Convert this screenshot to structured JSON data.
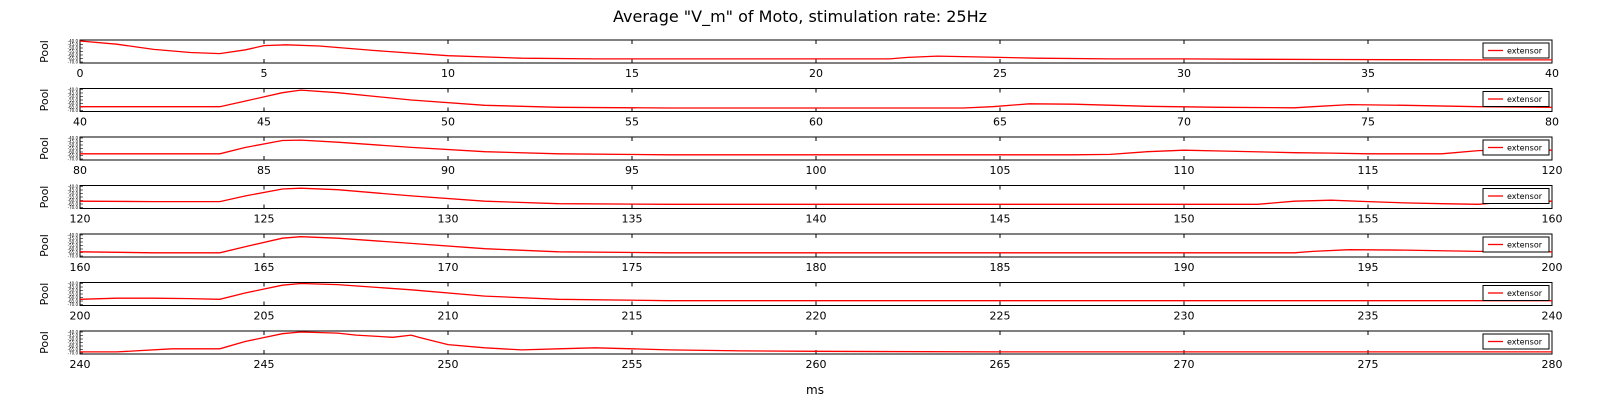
{
  "figure": {
    "title": "Average \"V_m\" of Moto, stimulation rate: 25Hz",
    "xlabel": "ms"
  },
  "chart_data": {
    "type": "line",
    "title": "Average \"V_m\" of Moto, stimulation rate: 25Hz",
    "xlabel": "ms",
    "ylabel": "Pool",
    "legend": "extensor",
    "legend_position": "right",
    "series_color": "#ff0000",
    "y_tick_labels": [
      "-40.0",
      "-45.0",
      "-50.0",
      "-55.0",
      "-60.0",
      "-65.0",
      "-70.0"
    ],
    "ylim": [
      0,
      1
    ],
    "y_units_note": "",
    "panels": [
      {
        "xlim": [
          0,
          40
        ],
        "ticks": [
          "0",
          "5",
          "10",
          "15",
          "20",
          "25",
          "30",
          "35",
          "40"
        ],
        "x": [
          0,
          1,
          2,
          3,
          3.8,
          4.5,
          5,
          5.6,
          6.5,
          8,
          10,
          12,
          14,
          16,
          18,
          20,
          22,
          22.5,
          23.3,
          24.5,
          26,
          28,
          30,
          32,
          34,
          36,
          38,
          40
        ],
        "y": [
          1,
          0.85,
          0.6,
          0.45,
          0.4,
          0.58,
          0.78,
          0.82,
          0.76,
          0.55,
          0.3,
          0.18,
          0.15,
          0.15,
          0.15,
          0.15,
          0.15,
          0.22,
          0.28,
          0.24,
          0.18,
          0.15,
          0.15,
          0.13,
          0.12,
          0.11,
          0.1,
          0.1
        ]
      },
      {
        "xlim": [
          40,
          80
        ],
        "ticks": [
          "40",
          "45",
          "50",
          "55",
          "60",
          "65",
          "70",
          "75",
          "80"
        ],
        "x": [
          40,
          42,
          43.8,
          44.5,
          45.5,
          46,
          47,
          49,
          51,
          53,
          56,
          60,
          64,
          64.8,
          65.8,
          67,
          69,
          71,
          73,
          73.5,
          74.5,
          76,
          78,
          80
        ],
        "y": [
          0.18,
          0.18,
          0.18,
          0.45,
          0.85,
          0.97,
          0.85,
          0.5,
          0.25,
          0.15,
          0.12,
          0.12,
          0.12,
          0.18,
          0.32,
          0.3,
          0.2,
          0.15,
          0.13,
          0.18,
          0.28,
          0.25,
          0.18,
          0.15
        ]
      },
      {
        "xlim": [
          80,
          120
        ],
        "ticks": [
          "80",
          "85",
          "90",
          "95",
          "100",
          "105",
          "110",
          "115",
          "120"
        ],
        "x": [
          80,
          82,
          83.8,
          84.5,
          85.5,
          86,
          87,
          89,
          91,
          93,
          96,
          100,
          104,
          107,
          108,
          109,
          110,
          111,
          113,
          114,
          115,
          116,
          117,
          118,
          119,
          120
        ],
        "y": [
          0.25,
          0.25,
          0.25,
          0.55,
          0.88,
          0.9,
          0.8,
          0.55,
          0.35,
          0.25,
          0.2,
          0.2,
          0.2,
          0.2,
          0.22,
          0.35,
          0.42,
          0.38,
          0.3,
          0.28,
          0.25,
          0.25,
          0.25,
          0.4,
          0.45,
          0.42
        ]
      },
      {
        "xlim": [
          120,
          160
        ],
        "ticks": [
          "120",
          "125",
          "130",
          "135",
          "140",
          "145",
          "150",
          "155",
          "160"
        ],
        "x": [
          120,
          122,
          123.8,
          124.5,
          125.5,
          126,
          127,
          129,
          131,
          133,
          136,
          140,
          144,
          148,
          150,
          152,
          153,
          154,
          155,
          156,
          157,
          158,
          159,
          160
        ],
        "y": [
          0.3,
          0.28,
          0.28,
          0.55,
          0.88,
          0.92,
          0.85,
          0.55,
          0.3,
          0.18,
          0.15,
          0.15,
          0.15,
          0.15,
          0.15,
          0.15,
          0.3,
          0.35,
          0.28,
          0.22,
          0.18,
          0.15,
          0.3,
          0.3
        ]
      },
      {
        "xlim": [
          160,
          200
        ],
        "ticks": [
          "160",
          "165",
          "170",
          "175",
          "180",
          "185",
          "190",
          "195",
          "200"
        ],
        "x": [
          160,
          162,
          163.8,
          164.5,
          165.5,
          166,
          167,
          169,
          171,
          173,
          176,
          180,
          185,
          190,
          193,
          193.5,
          194.5,
          196,
          198,
          200
        ],
        "y": [
          0.2,
          0.15,
          0.15,
          0.45,
          0.85,
          0.92,
          0.85,
          0.6,
          0.35,
          0.2,
          0.15,
          0.15,
          0.15,
          0.15,
          0.15,
          0.22,
          0.3,
          0.28,
          0.22,
          0.2
        ]
      },
      {
        "xlim": [
          200,
          240
        ],
        "ticks": [
          "200",
          "205",
          "210",
          "215",
          "220",
          "225",
          "230",
          "235",
          "240"
        ],
        "x": [
          200,
          201,
          202,
          203,
          203.8,
          204.5,
          205.5,
          206,
          207,
          209,
          211,
          213,
          216,
          220,
          225,
          230,
          235,
          240
        ],
        "y": [
          0.25,
          0.3,
          0.3,
          0.28,
          0.25,
          0.55,
          0.92,
          1,
          0.95,
          0.7,
          0.4,
          0.25,
          0.18,
          0.18,
          0.18,
          0.18,
          0.18,
          0.18
        ]
      },
      {
        "xlim": [
          240,
          280
        ],
        "ticks": [
          "240",
          "245",
          "250",
          "255",
          "260",
          "265",
          "270",
          "275",
          "280"
        ],
        "x": [
          240,
          241,
          241.5,
          242.5,
          243.8,
          244.5,
          245.5,
          246,
          247,
          247.5,
          248.5,
          249,
          249.2,
          250,
          251,
          252,
          253,
          254,
          255,
          256,
          258,
          260,
          265,
          270,
          275,
          280
        ],
        "y": [
          0.05,
          0.05,
          0.1,
          0.2,
          0.2,
          0.55,
          0.92,
          1,
          0.95,
          0.85,
          0.75,
          0.85,
          0.75,
          0.4,
          0.25,
          0.15,
          0.2,
          0.25,
          0.2,
          0.15,
          0.1,
          0.08,
          0.05,
          0.05,
          0.05,
          0.05
        ]
      }
    ]
  }
}
